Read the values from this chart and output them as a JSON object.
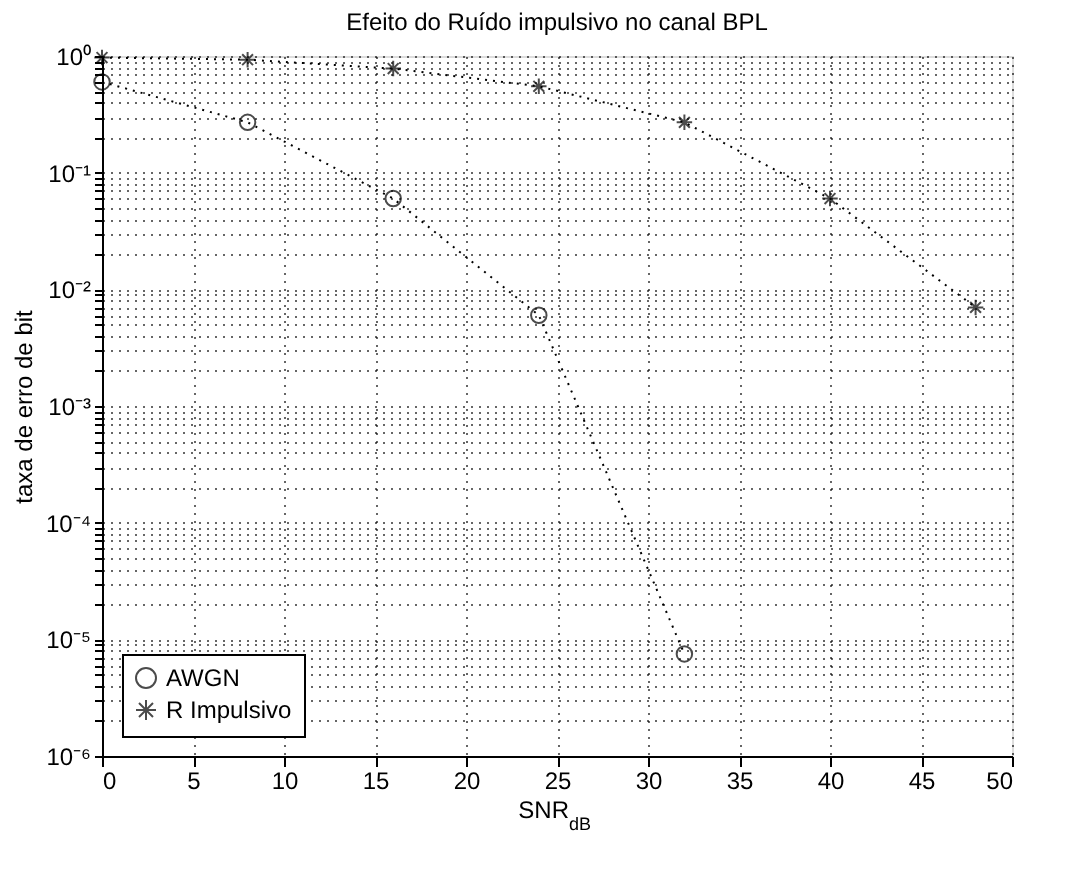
{
  "chart_data": {
    "type": "line",
    "title": "Efeito do Ruído impulsivo no canal BPL",
    "xlabel": "SNR$_{dB}$",
    "ylabel": "taxa de erro de bit",
    "log": "y",
    "grid": true,
    "legend": "bottom left",
    "line_style": "dotted",
    "xlim": [
      0,
      50
    ],
    "xticks": [
      0,
      5,
      10,
      15,
      20,
      25,
      30,
      35,
      40,
      45,
      50
    ],
    "ylim": [
      1e-06,
      1
    ],
    "yticks": [
      {
        "value": 1e-06,
        "label": "10⁻⁶"
      },
      {
        "value": 2e-06,
        "label": null
      },
      {
        "value": 3e-06,
        "label": null
      },
      {
        "value": 4e-06,
        "label": null
      },
      {
        "value": 5e-06,
        "label": null
      },
      {
        "value": 6e-06,
        "label": null
      },
      {
        "value": 7e-06,
        "label": null
      },
      {
        "value": 8e-06,
        "label": null
      },
      {
        "value": 9e-06,
        "label": null
      },
      {
        "value": 1e-05,
        "label": "10⁻⁵"
      },
      {
        "value": 2e-05,
        "label": null
      },
      {
        "value": 3e-05,
        "label": null
      },
      {
        "value": 4e-05,
        "label": null
      },
      {
        "value": 5e-05,
        "label": null
      },
      {
        "value": 6e-05,
        "label": null
      },
      {
        "value": 7e-05,
        "label": null
      },
      {
        "value": 8e-05,
        "label": null
      },
      {
        "value": 9e-05,
        "label": null
      },
      {
        "value": 0.0001,
        "label": "10⁻⁴"
      },
      {
        "value": 0.0002,
        "label": null
      },
      {
        "value": 0.0003,
        "label": null
      },
      {
        "value": 0.0004,
        "label": null
      },
      {
        "value": 0.0005,
        "label": null
      },
      {
        "value": 0.0006,
        "label": null
      },
      {
        "value": 0.0007,
        "label": null
      },
      {
        "value": 0.0008,
        "label": null
      },
      {
        "value": 0.0009,
        "label": null
      },
      {
        "value": 0.001,
        "label": "10⁻³"
      },
      {
        "value": 0.002,
        "label": null
      },
      {
        "value": 0.003,
        "label": null
      },
      {
        "value": 0.004,
        "label": null
      },
      {
        "value": 0.005,
        "label": null
      },
      {
        "value": 0.006,
        "label": null
      },
      {
        "value": 0.007,
        "label": null
      },
      {
        "value": 0.008,
        "label": null
      },
      {
        "value": 0.009,
        "label": null
      },
      {
        "value": 0.01,
        "label": "10⁻²"
      },
      {
        "value": 0.02,
        "label": null
      },
      {
        "value": 0.03,
        "label": null
      },
      {
        "value": 0.04,
        "label": null
      },
      {
        "value": 0.05,
        "label": null
      },
      {
        "value": 0.06,
        "label": null
      },
      {
        "value": 0.07,
        "label": null
      },
      {
        "value": 0.08,
        "label": null
      },
      {
        "value": 0.09,
        "label": null
      },
      {
        "value": 0.1,
        "label": "10⁻¹"
      },
      {
        "value": 0.2,
        "label": null
      },
      {
        "value": 0.3,
        "label": null
      },
      {
        "value": 0.4,
        "label": null
      },
      {
        "value": 0.5,
        "label": null
      },
      {
        "value": 0.6,
        "label": null
      },
      {
        "value": 0.7,
        "label": null
      },
      {
        "value": 0.8,
        "label": null
      },
      {
        "value": 0.9,
        "label": null
      },
      {
        "value": 1,
        "label": "10⁰"
      }
    ],
    "series": [
      {
        "name": "AWGN",
        "color": "#000000",
        "marker": "circle",
        "x": [
          0,
          8,
          16,
          24,
          32
        ],
        "values": [
          0.6,
          0.27,
          0.06,
          0.006,
          7.5e-06
        ]
      },
      {
        "name": "R Impulsivo",
        "color": "#000000",
        "marker": "cross",
        "x": [
          0,
          8,
          16,
          24,
          32,
          40,
          48
        ],
        "values": [
          0.97,
          0.93,
          0.78,
          0.55,
          0.27,
          0.06,
          0.007
        ]
      }
    ]
  }
}
